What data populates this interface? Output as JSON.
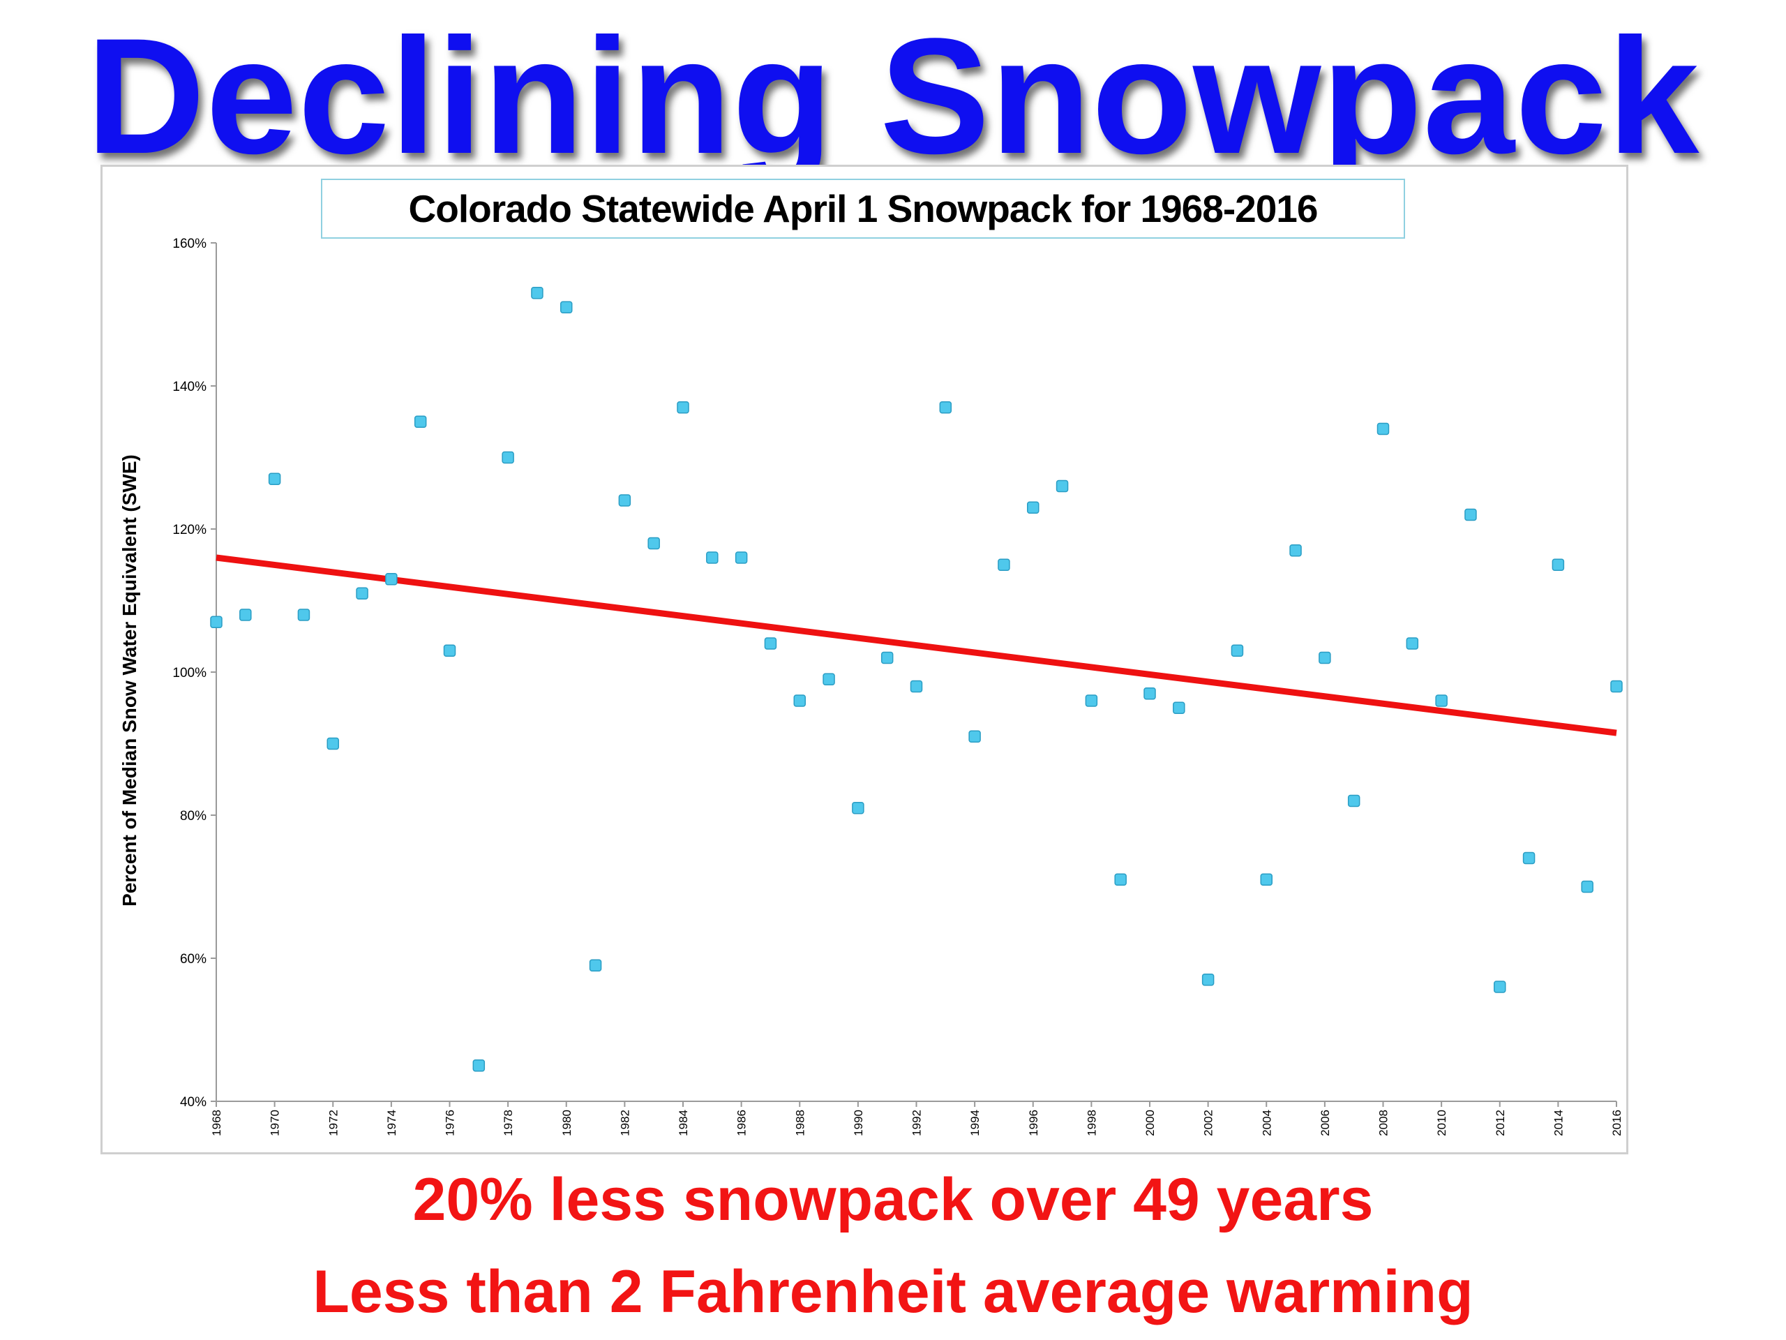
{
  "slide": {
    "title": "Declining Snowpack",
    "caption_1": "20% less snowpack over 49 years",
    "caption_2": "Less than 2 Fahrenheit average warming"
  },
  "colors": {
    "title": "#0f0ff0",
    "caption": "#f21414",
    "point_fill": "#4fc8ec",
    "trend_line": "#ee1111"
  },
  "chart_data": {
    "type": "scatter",
    "title": "Colorado Statewide April 1 Snowpack for 1968-2016",
    "xlabel": "",
    "ylabel": "Percent of Median Snow Water Equivalent (SWE)",
    "xlim": [
      1968,
      2016
    ],
    "ylim": [
      40,
      160
    ],
    "y_ticks": [
      40,
      60,
      80,
      100,
      120,
      140,
      160
    ],
    "y_tick_labels": [
      "40%",
      "60%",
      "80%",
      "100%",
      "120%",
      "140%",
      "160%"
    ],
    "x_ticks": [
      1968,
      1970,
      1972,
      1974,
      1976,
      1978,
      1980,
      1982,
      1984,
      1986,
      1988,
      1990,
      1992,
      1994,
      1996,
      1998,
      2000,
      2002,
      2004,
      2006,
      2008,
      2010,
      2012,
      2014,
      2016
    ],
    "x_tick_labels": [
      "1968",
      "1970",
      "1972",
      "1974",
      "1976",
      "1978",
      "1980",
      "1982",
      "1984",
      "1986",
      "1988",
      "1990",
      "1992",
      "1994",
      "1996",
      "1998",
      "2000",
      "2002",
      "2004",
      "2006",
      "2008",
      "2010",
      "2012",
      "2014",
      "2016"
    ],
    "grid": false,
    "legend": "none",
    "series": [
      {
        "x": [
          1968,
          1969,
          1970,
          1971,
          1972,
          1973,
          1974,
          1975,
          1976,
          1977,
          1978,
          1979,
          1980,
          1981,
          1982,
          1983,
          1984,
          1985,
          1986,
          1987,
          1988,
          1989,
          1990,
          1991,
          1992,
          1993,
          1994,
          1995,
          1996,
          1997,
          1998,
          1999,
          2000,
          2001,
          2002,
          2003,
          2004,
          2005,
          2006,
          2007,
          2008,
          2009,
          2010,
          2011,
          2012,
          2013,
          2014,
          2015,
          2016
        ],
        "y": [
          107,
          108,
          127,
          108,
          90,
          111,
          113,
          135,
          103,
          45,
          130,
          153,
          151,
          59,
          124,
          118,
          137,
          116,
          116,
          104,
          96,
          99,
          81,
          102,
          98,
          137,
          91,
          115,
          123,
          126,
          96,
          71,
          97,
          95,
          57,
          103,
          71,
          117,
          102,
          82,
          134,
          104,
          96,
          122,
          56,
          74,
          115,
          70,
          98
        ]
      }
    ],
    "trendline": {
      "x": [
        1968,
        2016
      ],
      "y": [
        116,
        91.5
      ]
    }
  }
}
